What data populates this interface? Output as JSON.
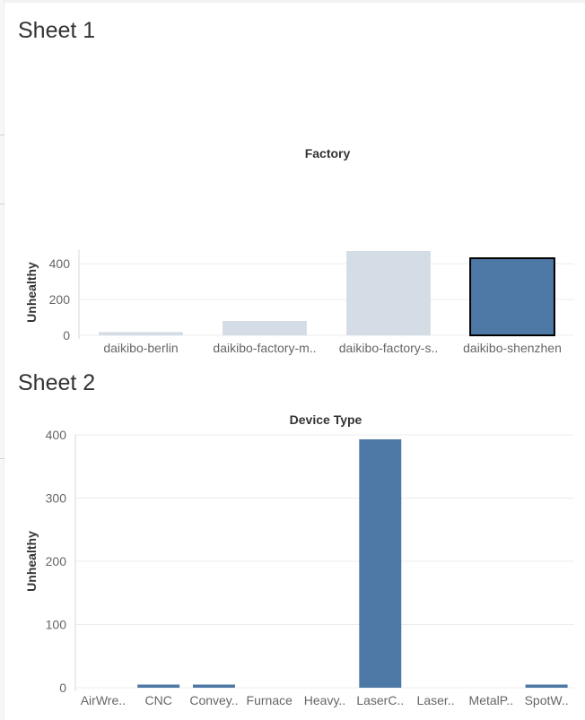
{
  "sheets": [
    {
      "title": "Sheet 1",
      "chart_data": {
        "type": "bar",
        "title": "Factory",
        "xlabel": "",
        "ylabel": "Unhealthy",
        "ylim": [
          0,
          480
        ],
        "yticks": [
          0,
          200,
          400
        ],
        "categories": [
          "daikibo-berlin",
          "daikibo-factory-m..",
          "daikibo-factory-s..",
          "daikibo-shenzhen"
        ],
        "values": [
          18,
          80,
          470,
          430
        ],
        "highlighted": [
          false,
          false,
          false,
          true
        ],
        "grid": true
      }
    },
    {
      "title": "Sheet 2",
      "chart_data": {
        "type": "bar",
        "title": "Device Type",
        "xlabel": "",
        "ylabel": "Unhealthy",
        "ylim": [
          0,
          400
        ],
        "yticks": [
          0,
          100,
          200,
          300,
          400
        ],
        "categories": [
          "AirWre..",
          "CNC",
          "Convey..",
          "Furnace",
          "Heavy..",
          "LaserC..",
          "Laser..",
          "MetalP..",
          "SpotW.."
        ],
        "values": [
          0,
          5,
          5,
          0,
          0,
          393,
          0,
          0,
          5
        ],
        "grid": true
      }
    }
  ],
  "colors": {
    "bar_selected": "#4e79a7",
    "bar_unselected": "#d4dde5",
    "bar_outline": "#000000",
    "gridline": "#ececec",
    "axis_line": "#d8d8d8"
  }
}
